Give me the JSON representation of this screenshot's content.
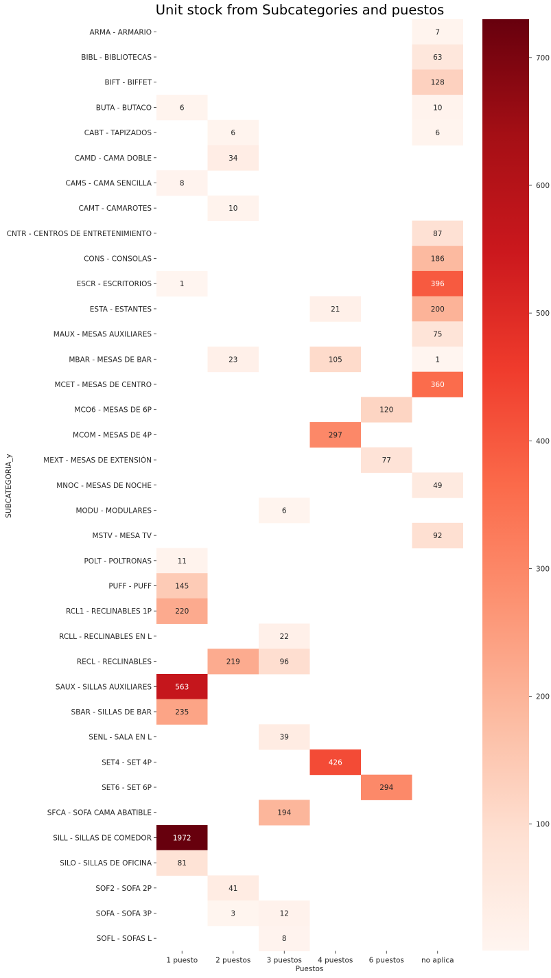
{
  "chart_data": {
    "type": "heatmap",
    "title": "Unit stock from Subcategories and puestos",
    "xlabel": "Puestos",
    "ylabel": "SUBCATEGORIA_y",
    "colormap": "Reds",
    "x": [
      "1 puesto",
      "2 puestos",
      "3 puestos",
      "4 puestos",
      "6 puestos",
      "no aplica"
    ],
    "y": [
      "ARMA - ARMARIO",
      "BIBL - BIBLIOTECAS",
      "BIFT - BIFFET",
      "BUTA - BUTACO",
      "CABT - TAPIZADOS",
      "CAMD - CAMA DOBLE",
      "CAMS - CAMA SENCILLA",
      "CAMT - CAMAROTES",
      "CNTR - CENTROS DE ENTRETENIMIENTO",
      "CONS - CONSOLAS",
      "ESCR - ESCRITORIOS",
      "ESTA - ESTANTES",
      "MAUX - MESAS AUXILIARES",
      "MBAR - MESAS DE BAR",
      "MCET - MESAS DE CENTRO",
      "MCO6 - MESAS DE 6P",
      "MCOM - MESAS DE 4P",
      "MEXT - MESAS DE EXTENSIÓN",
      "MNOC - MESAS DE NOCHE",
      "MODU - MODULARES",
      "MSTV - MESA TV",
      "POLT - POLTRONAS",
      "PUFF - PUFF",
      "RCL1 - RECLINABLES 1P",
      "RCLL - RECLINABLES EN L",
      "RECL - RECLINABLES",
      "SAUX - SILLAS AUXILIARES",
      "SBAR - SILLAS DE BAR",
      "SENL - SALA EN L",
      "SET4 - SET 4P",
      "SET6 - SET 6P",
      "SFCA - SOFA CAMA ABATIBLE",
      "SILL - SILLAS DE COMEDOR",
      "SILO - SILLAS DE OFICINA",
      "SOF2 - SOFA 2P",
      "SOFA - SOFA 3P",
      "SOFL - SOFAS L"
    ],
    "values": [
      [
        null,
        null,
        null,
        null,
        null,
        7
      ],
      [
        null,
        null,
        null,
        null,
        null,
        63
      ],
      [
        null,
        null,
        null,
        null,
        null,
        128
      ],
      [
        6,
        null,
        null,
        null,
        null,
        10
      ],
      [
        null,
        6,
        null,
        null,
        null,
        6
      ],
      [
        null,
        34,
        null,
        null,
        null,
        null
      ],
      [
        8,
        null,
        null,
        null,
        null,
        null
      ],
      [
        null,
        10,
        null,
        null,
        null,
        null
      ],
      [
        null,
        null,
        null,
        null,
        null,
        87
      ],
      [
        null,
        null,
        null,
        null,
        null,
        186
      ],
      [
        1,
        null,
        null,
        null,
        null,
        396
      ],
      [
        null,
        null,
        null,
        21,
        null,
        200
      ],
      [
        null,
        null,
        null,
        null,
        null,
        75
      ],
      [
        null,
        23,
        null,
        105,
        null,
        1
      ],
      [
        null,
        null,
        null,
        null,
        null,
        360
      ],
      [
        null,
        null,
        null,
        null,
        120,
        null
      ],
      [
        null,
        null,
        null,
        297,
        null,
        null
      ],
      [
        null,
        null,
        null,
        null,
        77,
        null
      ],
      [
        null,
        null,
        null,
        null,
        null,
        49
      ],
      [
        null,
        null,
        6,
        null,
        null,
        null
      ],
      [
        null,
        null,
        null,
        null,
        null,
        92
      ],
      [
        11,
        null,
        null,
        null,
        null,
        null
      ],
      [
        145,
        null,
        null,
        null,
        null,
        null
      ],
      [
        220,
        null,
        null,
        null,
        null,
        null
      ],
      [
        null,
        null,
        22,
        null,
        null,
        null
      ],
      [
        null,
        219,
        96,
        null,
        null,
        null
      ],
      [
        563,
        null,
        null,
        null,
        null,
        null
      ],
      [
        235,
        null,
        null,
        null,
        null,
        null
      ],
      [
        null,
        null,
        39,
        null,
        null,
        null
      ],
      [
        null,
        null,
        null,
        426,
        null,
        null
      ],
      [
        null,
        null,
        null,
        null,
        294,
        null
      ],
      [
        null,
        null,
        194,
        null,
        null,
        null
      ],
      [
        1972,
        null,
        null,
        null,
        null,
        null
      ],
      [
        81,
        null,
        null,
        null,
        null,
        null
      ],
      [
        null,
        41,
        null,
        null,
        null,
        null
      ],
      [
        null,
        3,
        12,
        null,
        null,
        null
      ],
      [
        null,
        null,
        8,
        null,
        null,
        null
      ]
    ],
    "colorbar": {
      "vmin": 1,
      "vmax": 730,
      "ticks": [
        100,
        200,
        300,
        400,
        500,
        600,
        700
      ]
    },
    "grid": false
  }
}
